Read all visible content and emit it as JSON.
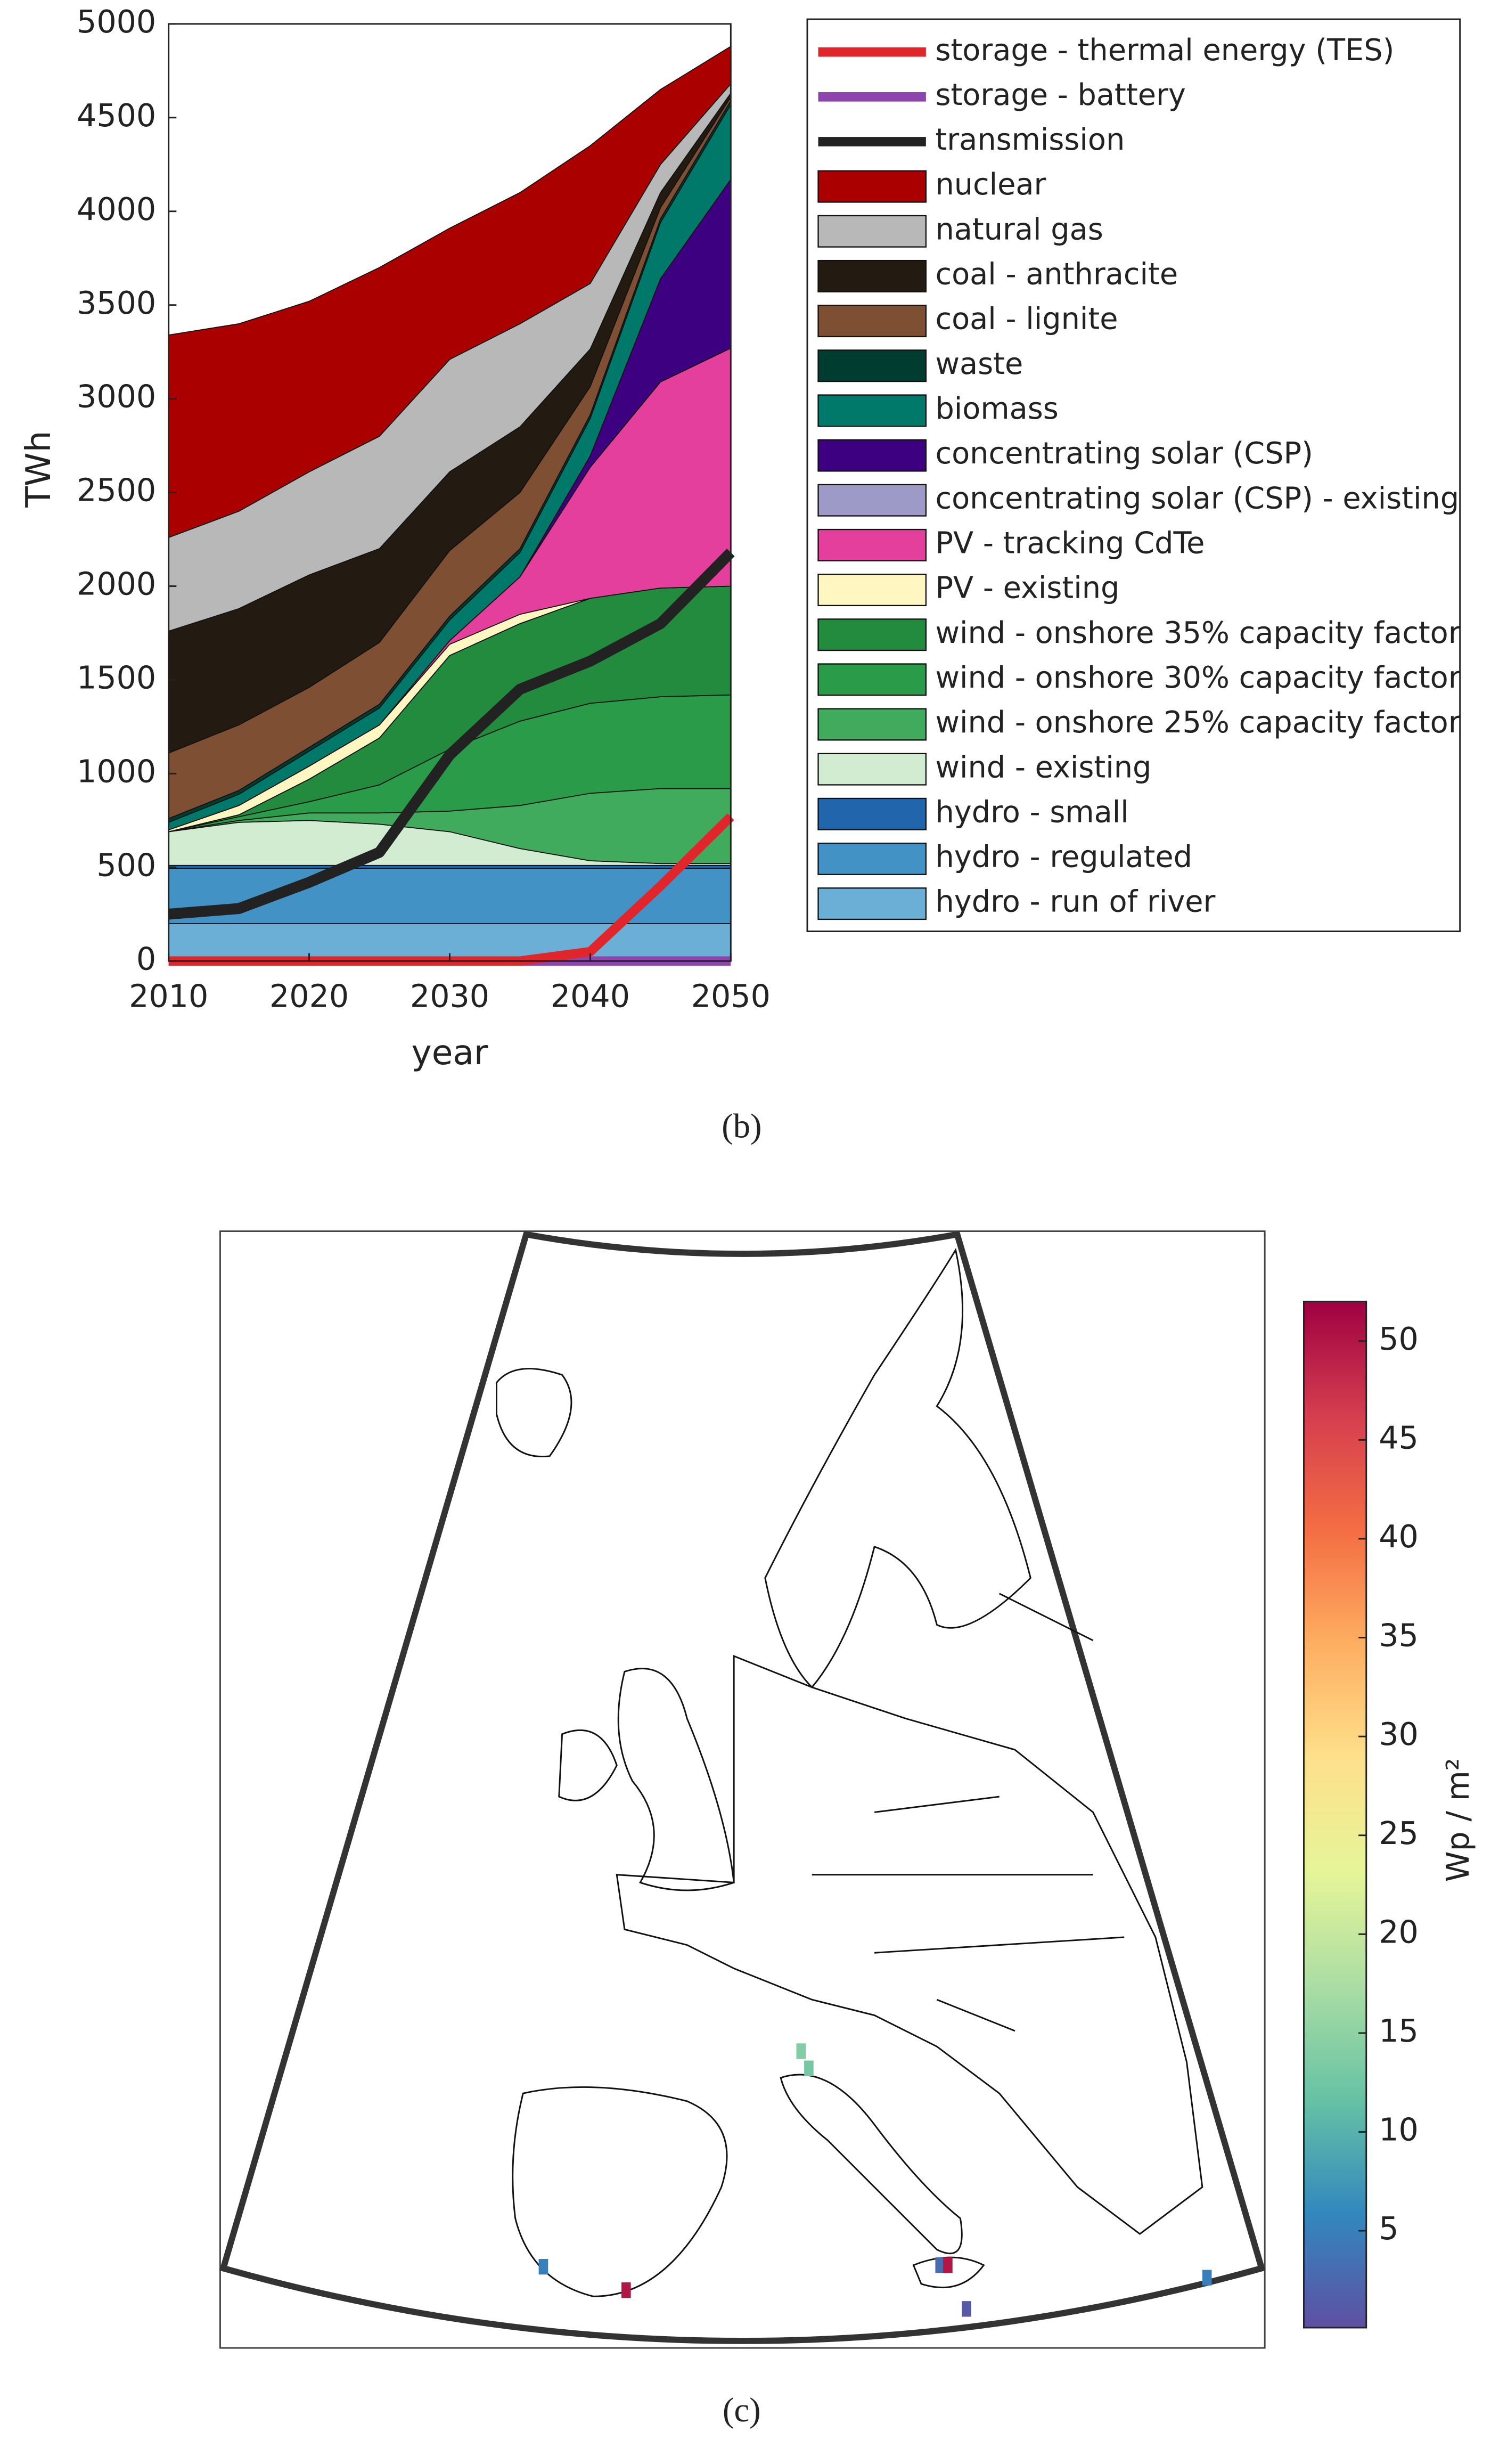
{
  "chart_data": {
    "type": "area",
    "x": [
      2010,
      2015,
      2020,
      2025,
      2030,
      2035,
      2040,
      2045,
      2050
    ],
    "xlabel": "year",
    "ylabel": "TWh",
    "xlim": [
      2010,
      2050
    ],
    "xticks": [
      2010,
      2020,
      2030,
      2040,
      2050
    ],
    "ylim": [
      0,
      5000
    ],
    "yticks": [
      0,
      500,
      1000,
      1500,
      2000,
      2500,
      3000,
      3500,
      4000,
      4500,
      5000
    ],
    "legend": "outside-right",
    "series": [
      {
        "name": "storage - thermal energy (TES)",
        "type": "line",
        "color": "#e0262b",
        "values": [
          0,
          0,
          0,
          0,
          0,
          0,
          50,
          400,
          770
        ]
      },
      {
        "name": "storage - battery",
        "type": "line",
        "color": "#8e44ad",
        "values": [
          0,
          0,
          0,
          0,
          0,
          0,
          0,
          0,
          0
        ]
      },
      {
        "name": "transmission",
        "type": "line",
        "color": "#222222",
        "values": [
          250,
          280,
          420,
          580,
          1100,
          1450,
          1600,
          1800,
          2180
        ]
      },
      {
        "name": "nuclear",
        "type": "area",
        "color": "#aa0000",
        "values": [
          1080,
          1000,
          910,
          900,
          700,
          700,
          735,
          400,
          200
        ]
      },
      {
        "name": "natural gas",
        "type": "area",
        "color": "#b8b8b8",
        "values": [
          500,
          520,
          550,
          600,
          600,
          550,
          350,
          150,
          50
        ]
      },
      {
        "name": "coal - anthracite",
        "type": "area",
        "color": "#231a12",
        "values": [
          650,
          620,
          600,
          500,
          420,
          350,
          200,
          80,
          20
        ]
      },
      {
        "name": "coal - lignite",
        "type": "area",
        "color": "#7f4f33",
        "values": [
          350,
          350,
          320,
          330,
          350,
          300,
          150,
          60,
          20
        ]
      },
      {
        "name": "waste",
        "type": "area",
        "color": "#003c30",
        "values": [
          20,
          20,
          20,
          20,
          20,
          20,
          20,
          20,
          20
        ]
      },
      {
        "name": "biomass",
        "type": "area",
        "color": "#00796b",
        "values": [
          40,
          60,
          80,
          90,
          110,
          130,
          200,
          300,
          400
        ]
      },
      {
        "name": "concentrating solar (CSP)",
        "type": "area",
        "color": "#3c0080",
        "values": [
          0,
          0,
          0,
          0,
          0,
          0,
          60,
          550,
          900
        ]
      },
      {
        "name": "concentrating solar (CSP) - existing",
        "type": "area",
        "color": "#9e9ac8",
        "values": [
          0,
          0,
          0,
          0,
          0,
          0,
          0,
          0,
          0
        ]
      },
      {
        "name": "PV - tracking CdTe",
        "type": "area",
        "color": "#e43f9d",
        "values": [
          0,
          0,
          0,
          0,
          20,
          200,
          700,
          1100,
          1270
        ]
      },
      {
        "name": "PV - existing",
        "type": "area",
        "color": "#fff6c2",
        "values": [
          10,
          50,
          70,
          70,
          60,
          50,
          0,
          0,
          0
        ]
      },
      {
        "name": "wind - onshore 35% capacity factor",
        "type": "area",
        "color": "#238b3e",
        "values": [
          0,
          10,
          120,
          250,
          500,
          520,
          560,
          580,
          580
        ]
      },
      {
        "name": "wind - onshore 30% capacity factor",
        "type": "area",
        "color": "#2a9b48",
        "values": [
          0,
          20,
          60,
          150,
          330,
          450,
          480,
          490,
          500
        ]
      },
      {
        "name": "wind - onshore 25% capacity factor",
        "type": "area",
        "color": "#41ab5d",
        "values": [
          0,
          10,
          40,
          60,
          110,
          230,
          360,
          400,
          400
        ]
      },
      {
        "name": "wind - existing",
        "type": "area",
        "color": "#d1ecd0",
        "values": [
          180,
          230,
          240,
          220,
          180,
          90,
          25,
          10,
          10
        ]
      },
      {
        "name": "hydro - small",
        "type": "area",
        "color": "#2166ac",
        "values": [
          15,
          15,
          15,
          15,
          15,
          15,
          15,
          15,
          15
        ]
      },
      {
        "name": "hydro - regulated",
        "type": "area",
        "color": "#4292c6",
        "values": [
          295,
          295,
          295,
          295,
          295,
          295,
          295,
          295,
          295
        ]
      },
      {
        "name": "hydro - run of river",
        "type": "area",
        "color": "#6baed6",
        "values": [
          200,
          200,
          200,
          200,
          200,
          200,
          200,
          200,
          200
        ]
      }
    ]
  },
  "caption_b": "(b)",
  "map": {
    "colorbar": {
      "label": "Wp / m²",
      "clim": [
        0.1,
        52
      ],
      "ticks": [
        5,
        10,
        15,
        20,
        25,
        30,
        35,
        40,
        45,
        50
      ],
      "colors": [
        "#5e4fa2",
        "#3288bd",
        "#66c2a5",
        "#abdda4",
        "#e6f598",
        "#fee08b",
        "#fdae61",
        "#f46d43",
        "#d53e4f",
        "#9e0142"
      ]
    },
    "sites": [
      5,
      50,
      14,
      13,
      3,
      50,
      1,
      5
    ]
  },
  "caption_c": "(c)"
}
